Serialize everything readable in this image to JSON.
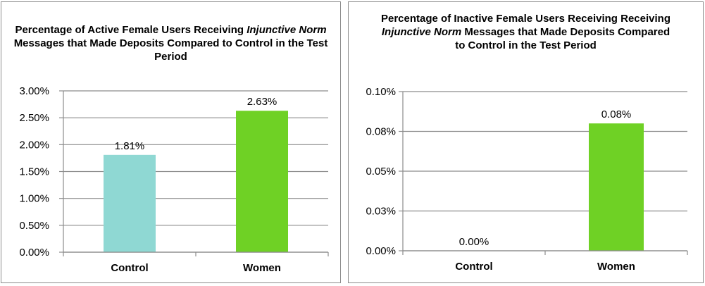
{
  "chart_data": [
    {
      "type": "bar",
      "title_parts": [
        "Percentage of Active Female Users Receiving ",
        "Injunctive Norm",
        " Messages that Made Deposits Compared to Control in the Test Period"
      ],
      "categories": [
        "Control",
        "Women"
      ],
      "values": [
        0.0181,
        0.0263
      ],
      "data_labels": [
        "1.81%",
        "2.63%"
      ],
      "bar_colors": [
        "#8fd8d3",
        "#6fd125"
      ],
      "ylim": [
        0,
        0.03
      ],
      "yticks": [
        0,
        0.005,
        0.01,
        0.015,
        0.02,
        0.025,
        0.03
      ],
      "ytick_labels": [
        "0.00%",
        "0.50%",
        "1.00%",
        "1.50%",
        "2.00%",
        "2.50%",
        "3.00%"
      ],
      "grid": true
    },
    {
      "type": "bar",
      "title_parts": [
        "Percentage of Inactive Female Users Receiving Receiving ",
        "Injunctive Norm",
        " Messages that Made Deposits Compared to Control in the Test Period"
      ],
      "categories": [
        "Control",
        "Women"
      ],
      "values": [
        0.0,
        0.0008
      ],
      "data_labels": [
        "0.00%",
        "0.08%"
      ],
      "bar_colors": [
        "#8fd8d3",
        "#6fd125"
      ],
      "ylim": [
        0,
        0.001
      ],
      "yticks": [
        0,
        0.00025,
        0.0005,
        0.00075,
        0.001
      ],
      "ytick_labels": [
        "0.00%",
        "0.03%",
        "0.05%",
        "0.08%",
        "0.10%"
      ],
      "grid": true
    }
  ],
  "colors": {
    "gridline": "#8c8c8c",
    "axis": "#8c8c8c",
    "border": "#8c8c8c"
  }
}
